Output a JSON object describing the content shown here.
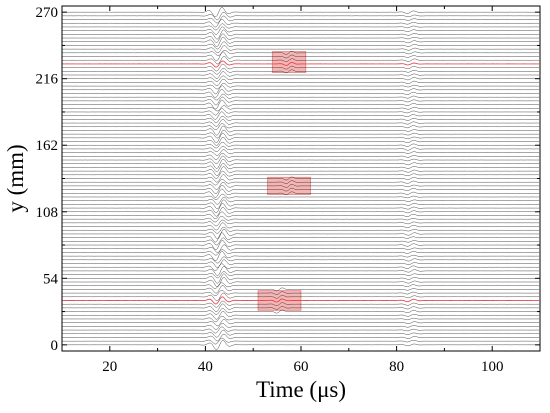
{
  "chart_data": {
    "type": "line",
    "title": "",
    "xlabel": "Time (μs)",
    "ylabel": "y (mm)",
    "xlim": [
      10,
      110
    ],
    "ylim": [
      -5,
      275
    ],
    "xticks": [
      20,
      40,
      60,
      80,
      100
    ],
    "yticks": [
      0,
      54,
      108,
      162,
      216,
      270
    ],
    "grid": false,
    "legend": "none",
    "traces": {
      "count": 91,
      "y_start": 0,
      "y_step": 3,
      "trace_color": "#000000",
      "highlight_color": "#e8383f",
      "highlighted_y": [
        36,
        228
      ],
      "description": "waveform traces offset by y position"
    },
    "wave_packets": [
      {
        "name": "incident",
        "center_us": 43,
        "width_us": 2.0,
        "amplitude_mm": 4.5,
        "freq_mhz": 0.33,
        "variation": "strong"
      },
      {
        "name": "reflection",
        "center_us": 83,
        "width_us": 1.6,
        "amplitude_mm": 1.3,
        "freq_mhz": 0.33,
        "variation": "weak"
      }
    ],
    "defect_zones": [
      {
        "x_range_us": [
          54,
          61
        ],
        "y_range_mm": [
          221,
          238
        ]
      },
      {
        "x_range_us": [
          53,
          62
        ],
        "y_range_mm": [
          122,
          136
        ]
      },
      {
        "x_range_us": [
          51,
          60
        ],
        "y_range_mm": [
          28,
          44
        ]
      }
    ],
    "colors": {
      "zone_fill": "#e85a5a",
      "zone_edge": "#c83232"
    }
  }
}
